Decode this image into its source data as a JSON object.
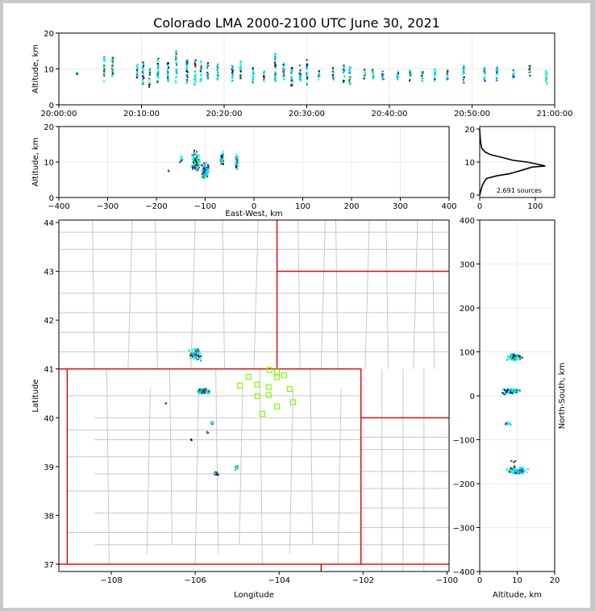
{
  "title": "Colorado LMA 2000-2100 UTC June 30, 2021",
  "colors": {
    "frame": "#c8c8c8",
    "state_border": "#e00000",
    "county_border": "#c8c8c8",
    "station": "#7fff00",
    "histogram_line": "#000000"
  },
  "chart_data": [
    {
      "id": "time_height",
      "type": "scatter",
      "ylabel": "Altitude, km",
      "xlim": [
        "20:00:00",
        "21:00:00"
      ],
      "ylim": [
        0,
        20
      ],
      "xticks": [
        "20:00:00",
        "20:10:00",
        "20:20:00",
        "20:30:00",
        "20:40:00",
        "20:50:00",
        "21:00:00"
      ],
      "yticks": [
        0,
        10,
        20
      ],
      "grid": true,
      "source_columns": [
        {
          "minute": 2.2,
          "lo": 8.5,
          "hi": 9.0
        },
        {
          "minute": 5.5,
          "lo": 6.5,
          "hi": 13.5
        },
        {
          "minute": 6.5,
          "lo": 8.0,
          "hi": 14.0
        },
        {
          "minute": 9.5,
          "lo": 7.0,
          "hi": 11.5
        },
        {
          "minute": 10.2,
          "lo": 5.5,
          "hi": 12.0
        },
        {
          "minute": 11.0,
          "lo": 5.0,
          "hi": 10.0
        },
        {
          "minute": 12.0,
          "lo": 6.0,
          "hi": 13.0
        },
        {
          "minute": 13.2,
          "lo": 6.5,
          "hi": 12.0
        },
        {
          "minute": 14.2,
          "lo": 6.0,
          "hi": 15.0
        },
        {
          "minute": 15.5,
          "lo": 6.0,
          "hi": 12.5
        },
        {
          "minute": 16.5,
          "lo": 5.5,
          "hi": 13.0
        },
        {
          "minute": 17.2,
          "lo": 6.5,
          "hi": 12.5
        },
        {
          "minute": 18.0,
          "lo": 7.0,
          "hi": 12.0
        },
        {
          "minute": 19.2,
          "lo": 7.0,
          "hi": 11.5
        },
        {
          "minute": 21.0,
          "lo": 6.0,
          "hi": 11.0
        },
        {
          "minute": 22.0,
          "lo": 7.0,
          "hi": 12.5
        },
        {
          "minute": 23.5,
          "lo": 6.0,
          "hi": 10.5
        },
        {
          "minute": 24.8,
          "lo": 6.5,
          "hi": 9.5
        },
        {
          "minute": 26.2,
          "lo": 6.5,
          "hi": 14.5
        },
        {
          "minute": 27.2,
          "lo": 7.0,
          "hi": 12.0
        },
        {
          "minute": 28.2,
          "lo": 4.5,
          "hi": 10.5
        },
        {
          "minute": 29.2,
          "lo": 6.5,
          "hi": 11.0
        },
        {
          "minute": 30.0,
          "lo": 5.5,
          "hi": 12.5
        },
        {
          "minute": 31.5,
          "lo": 7.0,
          "hi": 10.0
        },
        {
          "minute": 33.2,
          "lo": 7.0,
          "hi": 10.5
        },
        {
          "minute": 34.5,
          "lo": 6.0,
          "hi": 11.0
        },
        {
          "minute": 35.2,
          "lo": 5.5,
          "hi": 10.5
        },
        {
          "minute": 37.0,
          "lo": 7.0,
          "hi": 10.0
        },
        {
          "minute": 38.0,
          "lo": 7.0,
          "hi": 10.0
        },
        {
          "minute": 39.2,
          "lo": 7.0,
          "hi": 9.5
        },
        {
          "minute": 41.0,
          "lo": 7.0,
          "hi": 9.5
        },
        {
          "minute": 42.5,
          "lo": 6.5,
          "hi": 10.0
        },
        {
          "minute": 44.0,
          "lo": 6.5,
          "hi": 9.5
        },
        {
          "minute": 45.5,
          "lo": 6.5,
          "hi": 10.0
        },
        {
          "minute": 47.0,
          "lo": 7.0,
          "hi": 10.0
        },
        {
          "minute": 49.0,
          "lo": 5.5,
          "hi": 11.5
        },
        {
          "minute": 51.5,
          "lo": 6.5,
          "hi": 10.5
        },
        {
          "minute": 53.0,
          "lo": 6.5,
          "hi": 11.5
        },
        {
          "minute": 55.0,
          "lo": 7.5,
          "hi": 10.0
        },
        {
          "minute": 57.0,
          "lo": 8.0,
          "hi": 11.0
        },
        {
          "minute": 59.0,
          "lo": 5.5,
          "hi": 9.5
        }
      ]
    },
    {
      "id": "ew_height",
      "type": "scatter",
      "xlabel": "East-West, km",
      "ylabel": "Altitude, km",
      "xlim": [
        -400,
        400
      ],
      "ylim": [
        0,
        20
      ],
      "xticks": [
        -400,
        -300,
        -200,
        -100,
        0,
        100,
        200,
        300,
        400
      ],
      "yticks": [
        0,
        10,
        20
      ],
      "grid": true,
      "source_clusters": [
        {
          "x": -120,
          "y": 10,
          "rx": 12,
          "ry": 4,
          "n": 120
        },
        {
          "x": -100,
          "y": 7.5,
          "rx": 10,
          "ry": 3,
          "n": 130
        },
        {
          "x": -65,
          "y": 11,
          "rx": 4,
          "ry": 2.5,
          "n": 40
        },
        {
          "x": -35,
          "y": 10,
          "rx": 4,
          "ry": 3,
          "n": 50
        },
        {
          "x": -150,
          "y": 11,
          "rx": 5,
          "ry": 1.5,
          "n": 10
        },
        {
          "x": -175,
          "y": 7.5,
          "rx": 2,
          "ry": 0.5,
          "n": 2
        }
      ]
    },
    {
      "id": "altitude_histogram",
      "type": "line",
      "xlim": [
        0,
        135
      ],
      "ylim": [
        0,
        20
      ],
      "xticks": [
        0,
        100
      ],
      "yticks": [
        0,
        10,
        20
      ],
      "annotation": "2,691 sources",
      "points": [
        [
          0,
          0
        ],
        [
          3,
          2
        ],
        [
          5,
          3
        ],
        [
          8,
          4
        ],
        [
          12,
          5
        ],
        [
          30,
          5.8
        ],
        [
          55,
          6.5
        ],
        [
          75,
          7.5
        ],
        [
          95,
          8.5
        ],
        [
          118,
          8.8
        ],
        [
          100,
          9.5
        ],
        [
          85,
          10
        ],
        [
          60,
          10.5
        ],
        [
          45,
          11.2
        ],
        [
          30,
          11.8
        ],
        [
          20,
          12.2
        ],
        [
          10,
          13
        ],
        [
          4,
          14
        ],
        [
          2,
          15.5
        ],
        [
          1,
          17
        ],
        [
          0,
          20
        ]
      ]
    },
    {
      "id": "plan_view",
      "type": "scatter",
      "xlabel": "Longitude",
      "ylabel": "Latitude",
      "xlim": [
        -109.25,
        -99.95
      ],
      "ylim": [
        36.85,
        44.05
      ],
      "xticks": [
        -108,
        -106,
        -104,
        -102,
        -100
      ],
      "yticks": [
        37,
        38,
        39,
        40,
        41,
        42,
        43,
        44
      ],
      "source_clusters": [
        {
          "lon": -106.0,
          "lat": 41.3,
          "rx": 0.22,
          "ry": 0.17,
          "n": 70
        },
        {
          "lon": -105.8,
          "lat": 40.55,
          "rx": 0.18,
          "ry": 0.08,
          "n": 110
        },
        {
          "lon": -105.6,
          "lat": 39.9,
          "rx": 0.04,
          "ry": 0.04,
          "n": 10
        },
        {
          "lon": -105.7,
          "lat": 39.7,
          "rx": 0.05,
          "ry": 0.04,
          "n": 6
        },
        {
          "lon": -105.5,
          "lat": 38.85,
          "rx": 0.08,
          "ry": 0.05,
          "n": 18
        },
        {
          "lon": -105.0,
          "lat": 38.98,
          "rx": 0.07,
          "ry": 0.08,
          "n": 14
        },
        {
          "lon": -106.1,
          "lat": 39.55,
          "rx": 0.03,
          "ry": 0.03,
          "n": 3
        },
        {
          "lon": -106.7,
          "lat": 40.3,
          "rx": 0.03,
          "ry": 0.02,
          "n": 2
        }
      ],
      "stations": [
        {
          "lon": -104.93,
          "lat": 40.66
        },
        {
          "lon": -104.73,
          "lat": 40.84
        },
        {
          "lon": -104.52,
          "lat": 40.68
        },
        {
          "lon": -104.52,
          "lat": 40.44
        },
        {
          "lon": -104.25,
          "lat": 40.63
        },
        {
          "lon": -104.25,
          "lat": 40.47
        },
        {
          "lon": -104.23,
          "lat": 40.98
        },
        {
          "lon": -104.05,
          "lat": 40.83
        },
        {
          "lon": -104.05,
          "lat": 40.94
        },
        {
          "lon": -103.88,
          "lat": 40.87
        },
        {
          "lon": -103.75,
          "lat": 40.59
        },
        {
          "lon": -103.67,
          "lat": 40.32
        },
        {
          "lon": -104.05,
          "lat": 40.23
        },
        {
          "lon": -104.4,
          "lat": 40.08
        }
      ]
    },
    {
      "id": "ns_height",
      "type": "scatter",
      "xlabel": "Altitude, km",
      "ylabel": "North-South, km",
      "xlim": [
        0,
        20
      ],
      "ylim": [
        -400,
        400
      ],
      "xticks": [
        0,
        10,
        20
      ],
      "yticks": [
        -400,
        -300,
        -200,
        -100,
        0,
        100,
        200,
        300,
        400
      ],
      "grid": true,
      "source_clusters": [
        {
          "x": 9.5,
          "y": 88,
          "rx": 2.5,
          "ry": 10,
          "n": 110
        },
        {
          "x": 8,
          "y": 10,
          "rx": 3,
          "ry": 8,
          "n": 120
        },
        {
          "x": 7.5,
          "y": -65,
          "rx": 1.2,
          "ry": 10,
          "n": 12
        },
        {
          "x": 10,
          "y": -170,
          "rx": 3.5,
          "ry": 12,
          "n": 100
        },
        {
          "x": 9,
          "y": -150,
          "rx": 1,
          "ry": 3,
          "n": 5
        }
      ]
    }
  ],
  "map_geometry": {
    "state_borders_red": [
      [
        [
          -109.05,
          37.0
        ],
        [
          -109.05,
          41.0
        ],
        [
          -102.05,
          41.0
        ],
        [
          -102.05,
          37.0
        ],
        [
          -109.05,
          37.0
        ]
      ],
      [
        [
          -109.25,
          41.0
        ],
        [
          -109.05,
          41.0
        ]
      ],
      [
        [
          -104.05,
          44.05
        ],
        [
          -104.05,
          41.0
        ]
      ],
      [
        [
          -104.05,
          43.0
        ],
        [
          -99.95,
          43.0
        ]
      ],
      [
        [
          -102.05,
          40.0
        ],
        [
          -99.95,
          40.0
        ]
      ],
      [
        [
          -109.25,
          37.0
        ],
        [
          -109.05,
          37.0
        ]
      ],
      [
        [
          -102.05,
          37.0
        ],
        [
          -99.95,
          37.0
        ]
      ],
      [
        [
          -103.0,
          37.0
        ],
        [
          -103.0,
          36.85
        ]
      ]
    ]
  }
}
